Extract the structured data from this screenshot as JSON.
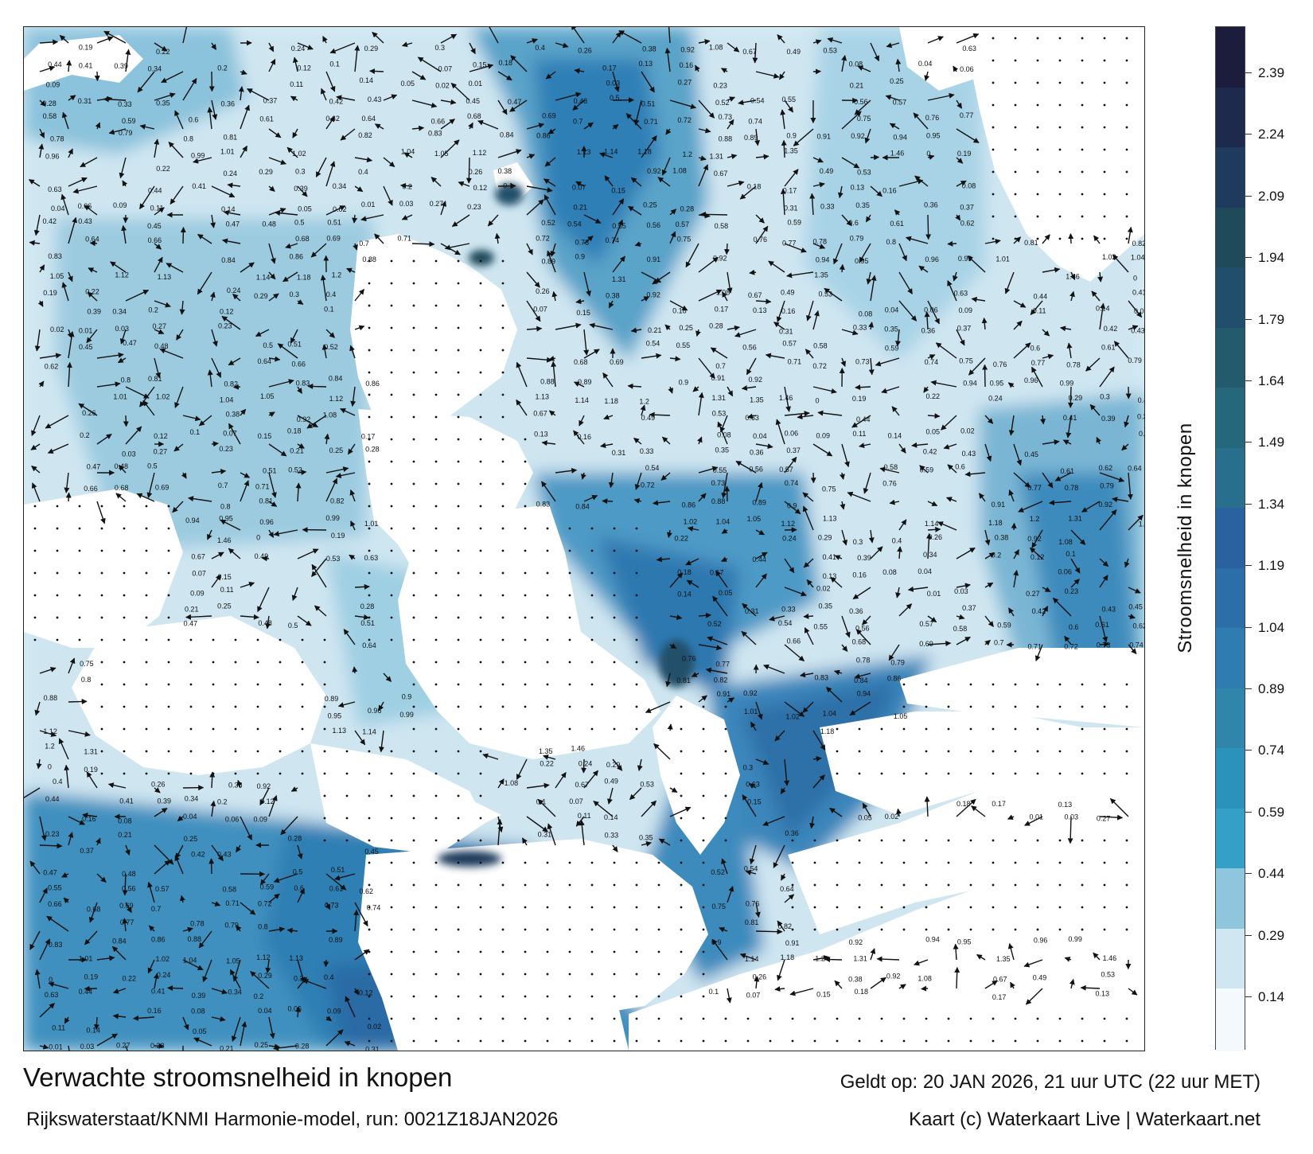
{
  "title": "Verwachte stroomsnelheid in knopen",
  "subtitle": "Rijkswaterstaat/KNMI Harmonie-model, run: 0021Z18JAN2026",
  "valid_time": "Geldt op: 20 JAN 2026, 21 uur UTC (22 uur MET)",
  "credit": "Kaart (c) Waterkaart Live | Waterkaart.net",
  "colorbar": {
    "label": "Stroomsnelheid in knopen",
    "ticks": [
      "2.39",
      "2.24",
      "2.09",
      "1.94",
      "1.79",
      "1.64",
      "1.49",
      "1.34",
      "1.19",
      "1.04",
      "0.89",
      "0.74",
      "0.59",
      "0.44",
      "0.29",
      "0.14"
    ],
    "colors": [
      "#1c1c3c",
      "#1d2a4e",
      "#1e3a5c",
      "#1f4a5a",
      "#214f6b",
      "#235b6d",
      "#25687c",
      "#286f8d",
      "#2a62a0",
      "#2c6fa8",
      "#2e7cb0",
      "#2f86aa",
      "#2b93ba",
      "#34a0c8",
      "#8fc5dd",
      "#d0e7f1",
      "#f3f9fc"
    ]
  },
  "map": {
    "land_color": "#ffffff",
    "water_light": "#d6ebf4",
    "water_mid": "#6fb1d0",
    "water_dark": "#2d78b0",
    "arrow_color": "#111111",
    "labels": [
      {
        "t": "0.19"
      },
      {
        "t": "0.22"
      },
      {
        "t": "0.24"
      },
      {
        "t": "0.29"
      },
      {
        "t": "0.3"
      },
      {
        "t": "0.4"
      },
      {
        "t": "0.26"
      },
      {
        "t": "0.38"
      },
      {
        "t": "0.92"
      },
      {
        "t": "1.08"
      },
      {
        "t": "0.67"
      },
      {
        "t": "0.49"
      },
      {
        "t": "0.53"
      },
      {
        "t": "0.63"
      },
      {
        "t": "0.44"
      },
      {
        "t": "0.41"
      },
      {
        "t": "0.39"
      },
      {
        "t": "0.34"
      },
      {
        "t": "0.2"
      },
      {
        "t": "0.12"
      },
      {
        "t": "0.1"
      },
      {
        "t": "0.07"
      },
      {
        "t": "0.15"
      },
      {
        "t": "0.18"
      },
      {
        "t": "0.17"
      },
      {
        "t": "0.13"
      },
      {
        "t": "0.16"
      },
      {
        "t": "0.08"
      },
      {
        "t": "0.04"
      },
      {
        "t": "0.06"
      },
      {
        "t": "0.09"
      },
      {
        "t": "0.11"
      },
      {
        "t": "0.14"
      },
      {
        "t": "0.05"
      },
      {
        "t": "0.02"
      },
      {
        "t": "0.01"
      },
      {
        "t": "0.03"
      },
      {
        "t": "0.27"
      },
      {
        "t": "0.23"
      },
      {
        "t": "0.21"
      },
      {
        "t": "0.25"
      },
      {
        "t": "0.28"
      },
      {
        "t": "0.31"
      },
      {
        "t": "0.33"
      },
      {
        "t": "0.35"
      },
      {
        "t": "0.36"
      },
      {
        "t": "0.37"
      },
      {
        "t": "0.42"
      },
      {
        "t": "0.43"
      },
      {
        "t": "0.45"
      },
      {
        "t": "0.47"
      },
      {
        "t": "0.48"
      },
      {
        "t": "0.5"
      },
      {
        "t": "0.51"
      },
      {
        "t": "0.52"
      },
      {
        "t": "0.54"
      },
      {
        "t": "0.55"
      },
      {
        "t": "0.56"
      },
      {
        "t": "0.57"
      },
      {
        "t": "0.58"
      },
      {
        "t": "0.59"
      },
      {
        "t": "0.6"
      },
      {
        "t": "0.61"
      },
      {
        "t": "0.62"
      },
      {
        "t": "0.64"
      },
      {
        "t": "0.66"
      },
      {
        "t": "0.68"
      },
      {
        "t": "0.69"
      },
      {
        "t": "0.7"
      },
      {
        "t": "0.71"
      },
      {
        "t": "0.72"
      },
      {
        "t": "0.73"
      },
      {
        "t": "0.74"
      },
      {
        "t": "0.75"
      },
      {
        "t": "0.76"
      },
      {
        "t": "0.77"
      },
      {
        "t": "0.78"
      },
      {
        "t": "0.79"
      },
      {
        "t": "0.8"
      },
      {
        "t": "0.81"
      },
      {
        "t": "0.82"
      },
      {
        "t": "0.83"
      },
      {
        "t": "0.84"
      },
      {
        "t": "0.86"
      },
      {
        "t": "0.88"
      },
      {
        "t": "0.89"
      },
      {
        "t": "0.9"
      },
      {
        "t": "0.91"
      },
      {
        "t": "0.92"
      },
      {
        "t": "0.94"
      },
      {
        "t": "0.95"
      },
      {
        "t": "0.96"
      },
      {
        "t": "0.99"
      },
      {
        "t": "1.01"
      },
      {
        "t": "1.02"
      },
      {
        "t": "1.04"
      },
      {
        "t": "1.05"
      },
      {
        "t": "1.12"
      },
      {
        "t": "1.13"
      },
      {
        "t": "1.14"
      },
      {
        "t": "1.18"
      },
      {
        "t": "1.2"
      },
      {
        "t": "1.31"
      },
      {
        "t": "1.35"
      },
      {
        "t": "1.46"
      },
      {
        "t": "0"
      }
    ]
  }
}
